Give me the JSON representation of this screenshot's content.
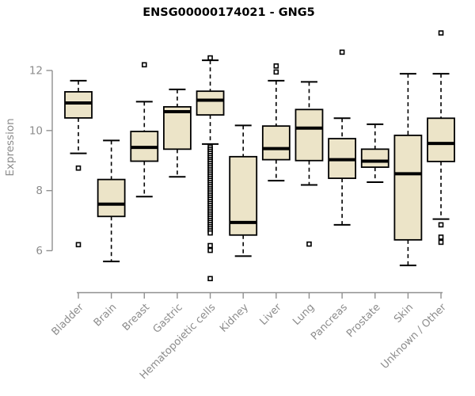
{
  "page": {
    "title_label": "ENSG00000174021 - GNG5"
  },
  "colors": {
    "background": "#ffffff",
    "box_fill": "#ece4c8",
    "box_stroke": "#000000",
    "median_stroke": "#000000",
    "whisker_stroke": "#000000",
    "outlier_stroke": "#000000",
    "outlier_fill": "#ffffff",
    "axis_line": "#909090",
    "axis_text": "#8c8c8c",
    "title_text": "#000000"
  },
  "chart_data": {
    "type": "boxplot",
    "title": "ENSG00000174021 - GNG5",
    "xlabel": "",
    "ylabel": "Expression",
    "yticks": [
      6,
      8,
      10,
      12
    ],
    "ylim": [
      4.8,
      13.5
    ],
    "grid": false,
    "legend": false,
    "categories": [
      "Bladder",
      "Brain",
      "Breast",
      "Gastric",
      "Hematopoietic cells",
      "Kidney",
      "Liver",
      "Lung",
      "Pancreas",
      "Prostate",
      "Skin",
      "Unknown / Other"
    ],
    "series": [
      {
        "name": "Bladder",
        "whisker_low": 9.24,
        "q1": 10.42,
        "median": 10.92,
        "q3": 11.29,
        "whisker_high": 11.66,
        "outliers": [
          8.75,
          6.2
        ]
      },
      {
        "name": "Brain",
        "whisker_low": 5.64,
        "q1": 7.14,
        "median": 7.55,
        "q3": 8.37,
        "whisker_high": 9.67,
        "outliers": []
      },
      {
        "name": "Breast",
        "whisker_low": 7.8,
        "q1": 8.98,
        "median": 9.44,
        "q3": 9.97,
        "whisker_high": 10.96,
        "outliers": [
          12.19
        ]
      },
      {
        "name": "Gastric",
        "whisker_low": 8.46,
        "q1": 9.38,
        "median": 10.63,
        "q3": 10.79,
        "whisker_high": 11.37,
        "outliers": []
      },
      {
        "name": "Hematopoietic cells",
        "whisker_low": 9.55,
        "q1": 10.52,
        "median": 11.01,
        "q3": 11.31,
        "whisker_high": 12.34,
        "outliers": [
          12.42,
          9.45,
          9.38,
          9.31,
          9.24,
          9.17,
          9.1,
          9.03,
          8.97,
          8.9,
          8.83,
          8.76,
          8.69,
          8.62,
          8.55,
          8.48,
          8.41,
          8.34,
          8.27,
          8.2,
          8.13,
          8.06,
          7.99,
          7.92,
          7.85,
          7.78,
          7.71,
          7.64,
          7.57,
          7.5,
          7.43,
          7.36,
          7.29,
          7.22,
          7.15,
          7.08,
          7.01,
          6.94,
          6.87,
          6.8,
          6.73,
          6.66,
          6.59,
          6.17,
          6.01,
          5.07
        ]
      },
      {
        "name": "Kidney",
        "whisker_low": 5.82,
        "q1": 6.52,
        "median": 6.94,
        "q3": 9.13,
        "whisker_high": 10.17,
        "outliers": []
      },
      {
        "name": "Liver",
        "whisker_low": 8.33,
        "q1": 9.03,
        "median": 9.4,
        "q3": 10.15,
        "whisker_high": 11.66,
        "outliers": [
          12.15,
          11.95
        ]
      },
      {
        "name": "Lung",
        "whisker_low": 8.19,
        "q1": 9.0,
        "median": 10.08,
        "q3": 10.7,
        "whisker_high": 11.62,
        "outliers": [
          6.22
        ]
      },
      {
        "name": "Pancreas",
        "whisker_low": 6.86,
        "q1": 8.41,
        "median": 9.03,
        "q3": 9.73,
        "whisker_high": 10.41,
        "outliers": [
          12.61
        ]
      },
      {
        "name": "Prostate",
        "whisker_low": 8.28,
        "q1": 8.78,
        "median": 8.98,
        "q3": 9.38,
        "whisker_high": 10.21,
        "outliers": []
      },
      {
        "name": "Skin",
        "whisker_low": 5.51,
        "q1": 6.36,
        "median": 8.56,
        "q3": 9.84,
        "whisker_high": 11.89,
        "outliers": []
      },
      {
        "name": "Unknown / Other",
        "whisker_low": 7.05,
        "q1": 8.97,
        "median": 9.57,
        "q3": 10.41,
        "whisker_high": 11.89,
        "outliers": [
          13.25,
          6.86,
          6.45,
          6.28
        ]
      }
    ]
  }
}
